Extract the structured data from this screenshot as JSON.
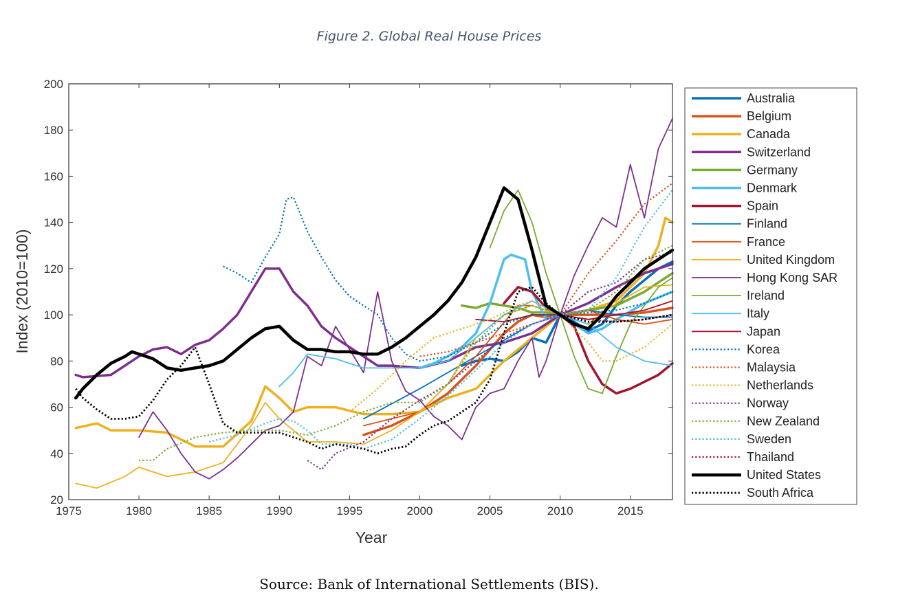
{
  "figure_title": "Figure 2. Global Real House Prices",
  "source_note": "Source: Bank of International Settlements (BIS).",
  "chart_data": {
    "type": "line",
    "title": "",
    "xlabel": "Year",
    "ylabel": "Index (2010=100)",
    "xlim": [
      1975,
      2018
    ],
    "ylim": [
      20,
      200
    ],
    "xticks": [
      1975,
      1980,
      1985,
      1990,
      1995,
      2000,
      2005,
      2010,
      2015
    ],
    "yticks": [
      20,
      40,
      60,
      80,
      100,
      120,
      140,
      160,
      180,
      200
    ],
    "grid": false,
    "legend_position": "right-outside",
    "series": [
      {
        "name": "Australia",
        "color": "#0072bd",
        "style": "solid",
        "width": 3.5,
        "x": [
          2003,
          2004,
          2005,
          2006,
          2007,
          2008,
          2009,
          2010,
          2011,
          2012,
          2013,
          2014,
          2015,
          2016,
          2017,
          2018
        ],
        "y": [
          78,
          80,
          81,
          80,
          84,
          90,
          88,
          100,
          97,
          93,
          96,
          104,
          110,
          115,
          120,
          123
        ]
      },
      {
        "name": "Belgium",
        "color": "#d95319",
        "style": "solid",
        "width": 3.5,
        "x": [
          1996,
          1998,
          2000,
          2002,
          2004,
          2006,
          2007,
          2008,
          2009,
          2010,
          2012,
          2014,
          2016,
          2018
        ],
        "y": [
          48,
          52,
          58,
          66,
          78,
          92,
          97,
          100,
          99,
          100,
          100,
          100,
          101,
          103
        ]
      },
      {
        "name": "Canada",
        "color": "#edb120",
        "style": "solid",
        "width": 3.5,
        "x": [
          1975.5,
          1977,
          1978,
          1980,
          1982,
          1984,
          1986,
          1988,
          1989,
          1990,
          1991,
          1992,
          1994,
          1996,
          1998,
          2000,
          2002,
          2004,
          2006,
          2008,
          2009,
          2010,
          2012,
          2014,
          2016,
          2017,
          2017.5,
          2018
        ],
        "y": [
          51,
          53,
          50,
          50,
          49,
          43,
          43,
          54,
          69,
          64,
          58,
          60,
          60,
          57,
          57,
          58,
          64,
          68,
          80,
          90,
          95,
          100,
          102,
          106,
          118,
          130,
          142,
          140
        ]
      },
      {
        "name": "Switzerland",
        "color": "#7e2f8e",
        "style": "solid",
        "width": 3.5,
        "x": [
          1975.5,
          1976,
          1978,
          1980,
          1981,
          1982,
          1983,
          1984,
          1985,
          1986,
          1987,
          1988,
          1989,
          1990,
          1991,
          1992,
          1993,
          1994,
          1995,
          1996,
          1997,
          1998,
          2000,
          2002,
          2004,
          2006,
          2008,
          2010,
          2012,
          2014,
          2016,
          2018
        ],
        "y": [
          74,
          73,
          74,
          82,
          85,
          86,
          83,
          87,
          89,
          94,
          100,
          110,
          120,
          120,
          110,
          104,
          95,
          90,
          86,
          82,
          78,
          78,
          77,
          80,
          86,
          88,
          92,
          100,
          105,
          112,
          118,
          122
        ]
      },
      {
        "name": "Germany",
        "color": "#77ac30",
        "style": "solid",
        "width": 3.5,
        "x": [
          2003,
          2004,
          2005,
          2006,
          2007,
          2008,
          2009,
          2010,
          2012,
          2014,
          2016,
          2018
        ],
        "y": [
          104,
          103,
          105,
          104,
          103,
          101,
          101,
          100,
          102,
          104,
          110,
          118
        ]
      },
      {
        "name": "Denmark",
        "color": "#4dbeee",
        "style": "solid",
        "width": 3.5,
        "x": [
          2000,
          2001,
          2002,
          2003,
          2004,
          2005,
          2006,
          2006.5,
          2007,
          2007.5,
          2008,
          2009,
          2010,
          2011,
          2012,
          2013,
          2014,
          2016,
          2018
        ],
        "y": [
          77,
          79,
          82,
          86,
          92,
          105,
          124,
          126,
          125,
          124,
          110,
          98,
          100,
          96,
          92,
          94,
          98,
          105,
          110
        ]
      },
      {
        "name": "Spain",
        "color": "#a2142f",
        "style": "solid",
        "width": 3.5,
        "x": [
          2006,
          2007,
          2008,
          2009,
          2010,
          2011,
          2012,
          2013,
          2014,
          2015,
          2016,
          2017,
          2018
        ],
        "y": [
          105,
          112,
          110,
          103,
          100,
          95,
          80,
          70,
          66,
          68,
          71,
          74,
          79
        ]
      },
      {
        "name": "Finland",
        "color": "#0072bd",
        "style": "solid",
        "width": 1.8,
        "x": [
          1996,
          2000,
          2004,
          2008,
          2010,
          2012,
          2014,
          2016,
          2018
        ],
        "y": [
          55,
          68,
          82,
          96,
          100,
          102,
          100,
          99,
          99
        ]
      },
      {
        "name": "France",
        "color": "#d95319",
        "style": "solid",
        "width": 1.8,
        "x": [
          1996,
          2000,
          2004,
          2007,
          2008,
          2010,
          2012,
          2014,
          2016,
          2018
        ],
        "y": [
          52,
          58,
          82,
          104,
          104,
          100,
          102,
          98,
          96,
          98
        ]
      },
      {
        "name": "United Kingdom",
        "color": "#edb120",
        "style": "solid",
        "width": 1.8,
        "x": [
          1975.5,
          1977,
          1979,
          1980,
          1982,
          1984,
          1986,
          1988,
          1989,
          1990,
          1992,
          1994,
          1996,
          1998,
          2000,
          2002,
          2004,
          2006,
          2008,
          2010,
          2012,
          2014,
          2016,
          2018
        ],
        "y": [
          27,
          25,
          30,
          34,
          30,
          32,
          36,
          52,
          62,
          55,
          45,
          45,
          44,
          50,
          58,
          70,
          90,
          100,
          104,
          100,
          96,
          105,
          112,
          113
        ]
      },
      {
        "name": "Hong Kong SAR",
        "color": "#7e2f8e",
        "style": "solid",
        "width": 1.8,
        "x": [
          1980,
          1981,
          1982,
          1983,
          1984,
          1985,
          1986,
          1987,
          1988,
          1989,
          1990,
          1991,
          1992,
          1993,
          1994,
          1995,
          1996,
          1997,
          1998,
          1999,
          2000,
          2001,
          2002,
          2003,
          2004,
          2005,
          2006,
          2007,
          2008,
          2008.5,
          2009,
          2010,
          2011,
          2012,
          2013,
          2014,
          2015,
          2016,
          2017,
          2018
        ],
        "y": [
          47,
          58,
          50,
          40,
          32,
          29,
          33,
          38,
          44,
          50,
          52,
          58,
          82,
          78,
          95,
          85,
          75,
          110,
          80,
          67,
          63,
          56,
          52,
          46,
          60,
          66,
          68,
          80,
          90,
          73,
          80,
          100,
          117,
          130,
          142,
          138,
          165,
          142,
          172,
          185
        ]
      },
      {
        "name": "Ireland",
        "color": "#77ac30",
        "style": "solid",
        "width": 1.8,
        "x": [
          2005,
          2006,
          2007,
          2008,
          2009,
          2010,
          2011,
          2012,
          2013,
          2014,
          2015,
          2016,
          2017,
          2018
        ],
        "y": [
          129,
          145,
          154,
          140,
          118,
          100,
          82,
          68,
          66,
          82,
          96,
          104,
          112,
          116
        ]
      },
      {
        "name": "Italy",
        "color": "#4dbeee",
        "style": "solid",
        "width": 1.8,
        "x": [
          1990,
          1991,
          1992,
          1994,
          1996,
          1998,
          2000,
          2002,
          2004,
          2006,
          2008,
          2010,
          2012,
          2014,
          2016,
          2018
        ],
        "y": [
          69,
          75,
          83,
          81,
          77,
          77,
          77,
          80,
          90,
          100,
          106,
          100,
          96,
          86,
          80,
          78
        ]
      },
      {
        "name": "Japan",
        "color": "#a2142f",
        "style": "solid",
        "width": 1.8,
        "x": [
          2004,
          2006,
          2008,
          2010,
          2012,
          2014,
          2016,
          2018
        ],
        "y": [
          98,
          97,
          100,
          100,
          98,
          100,
          102,
          106
        ]
      },
      {
        "name": "Korea",
        "color": "#0072bd",
        "style": "dotted",
        "width": 2.2,
        "x": [
          1986,
          1987,
          1988,
          1989,
          1990,
          1990.5,
          1991,
          1992,
          1993,
          1994,
          1995,
          1996,
          1997,
          1998,
          1999,
          2000,
          2002,
          2004,
          2006,
          2008,
          2010,
          2012,
          2014,
          2016,
          2018
        ],
        "y": [
          121,
          118,
          114,
          125,
          135,
          150,
          151,
          136,
          125,
          115,
          108,
          104,
          100,
          90,
          83,
          80,
          82,
          88,
          96,
          100,
          100,
          101,
          102,
          105,
          110
        ]
      },
      {
        "name": "Malaysia",
        "color": "#d95319",
        "style": "dotted",
        "width": 2.2,
        "x": [
          2000,
          2002,
          2004,
          2006,
          2008,
          2010,
          2012,
          2014,
          2016,
          2018
        ],
        "y": [
          82,
          84,
          88,
          92,
          96,
          100,
          118,
          132,
          148,
          157
        ]
      },
      {
        "name": "Netherlands",
        "color": "#edb120",
        "style": "dotted",
        "width": 2.2,
        "x": [
          1995,
          1997,
          1999,
          2001,
          2003,
          2005,
          2007,
          2008,
          2010,
          2012,
          2013,
          2014,
          2016,
          2018
        ],
        "y": [
          58,
          68,
          80,
          90,
          94,
          98,
          104,
          106,
          100,
          88,
          80,
          80,
          86,
          96
        ]
      },
      {
        "name": "Norway",
        "color": "#7e2f8e",
        "style": "dotted",
        "width": 2.2,
        "x": [
          1992,
          1993,
          1994,
          1996,
          1998,
          2000,
          2002,
          2004,
          2006,
          2008,
          2010,
          2012,
          2014,
          2016,
          2018
        ],
        "y": [
          37,
          33,
          40,
          45,
          55,
          63,
          70,
          80,
          90,
          96,
          100,
          110,
          114,
          124,
          127
        ]
      },
      {
        "name": "New Zealand",
        "color": "#77ac30",
        "style": "dotted",
        "width": 2.2,
        "x": [
          1980,
          1981,
          1982,
          1984,
          1986,
          1988,
          1990,
          1992,
          1994,
          1996,
          1998,
          2000,
          2002,
          2004,
          2006,
          2008,
          2010,
          2012,
          2014,
          2016,
          2018
        ],
        "y": [
          37,
          37,
          42,
          47,
          49,
          50,
          50,
          48,
          52,
          58,
          62,
          62,
          70,
          88,
          100,
          104,
          100,
          102,
          110,
          124,
          130
        ]
      },
      {
        "name": "Sweden",
        "color": "#4dbeee",
        "style": "dotted",
        "width": 2.2,
        "x": [
          1985,
          1987,
          1989,
          1990,
          1991,
          1992,
          1993,
          1994,
          1995,
          1996,
          1998,
          2000,
          2002,
          2004,
          2006,
          2008,
          2010,
          2012,
          2014,
          2016,
          2018
        ],
        "y": [
          45,
          48,
          53,
          55,
          54,
          50,
          44,
          44,
          44,
          42,
          46,
          55,
          65,
          76,
          88,
          96,
          100,
          102,
          116,
          138,
          154
        ]
      },
      {
        "name": "Thailand",
        "color": "#a2142f",
        "style": "dotted",
        "width": 2.2,
        "x": [
          2008,
          2010,
          2012,
          2014,
          2016,
          2018
        ],
        "y": [
          100,
          100,
          98,
          97,
          98,
          100
        ]
      },
      {
        "name": "United States",
        "color": "#000000",
        "style": "solid",
        "width": 4.5,
        "x": [
          1975.5,
          1976,
          1977,
          1978,
          1979,
          1979.5,
          1980,
          1981,
          1982,
          1983,
          1984,
          1985,
          1986,
          1987,
          1988,
          1989,
          1990,
          1991,
          1992,
          1993,
          1994,
          1995,
          1996,
          1997,
          1998,
          1999,
          2000,
          2001,
          2002,
          2003,
          2004,
          2005,
          2006,
          2007,
          2008,
          2009,
          2010,
          2011,
          2012,
          2013,
          2014,
          2015,
          2016,
          2017,
          2018
        ],
        "y": [
          64,
          68,
          74,
          79,
          82,
          84,
          83,
          81,
          77,
          76,
          77,
          78,
          80,
          85,
          90,
          94,
          95,
          89,
          85,
          85,
          84,
          84,
          83,
          83,
          86,
          90,
          95,
          100,
          106,
          114,
          125,
          140,
          155,
          150,
          128,
          104,
          100,
          96,
          94,
          100,
          108,
          114,
          120,
          124,
          128
        ]
      },
      {
        "name": "South Africa",
        "color": "#000000",
        "style": "dotted",
        "width": 2.8,
        "x": [
          1975.5,
          1976,
          1977,
          1978,
          1979,
          1980,
          1981,
          1982,
          1983,
          1984,
          1985,
          1986,
          1987,
          1988,
          1990,
          1992,
          1993,
          1994,
          1995,
          1996,
          1997,
          1998,
          1999,
          2000,
          2001,
          2002,
          2003,
          2004,
          2005,
          2006,
          2007,
          2008,
          2009,
          2010,
          2012,
          2014,
          2016,
          2018
        ],
        "y": [
          68,
          64,
          59,
          55,
          55,
          56,
          63,
          72,
          78,
          86,
          70,
          53,
          49,
          49,
          49,
          45,
          42,
          44,
          43,
          42,
          40,
          42,
          43,
          48,
          52,
          54,
          58,
          62,
          72,
          92,
          110,
          112,
          105,
          100,
          97,
          97,
          98,
          100
        ]
      }
    ]
  }
}
